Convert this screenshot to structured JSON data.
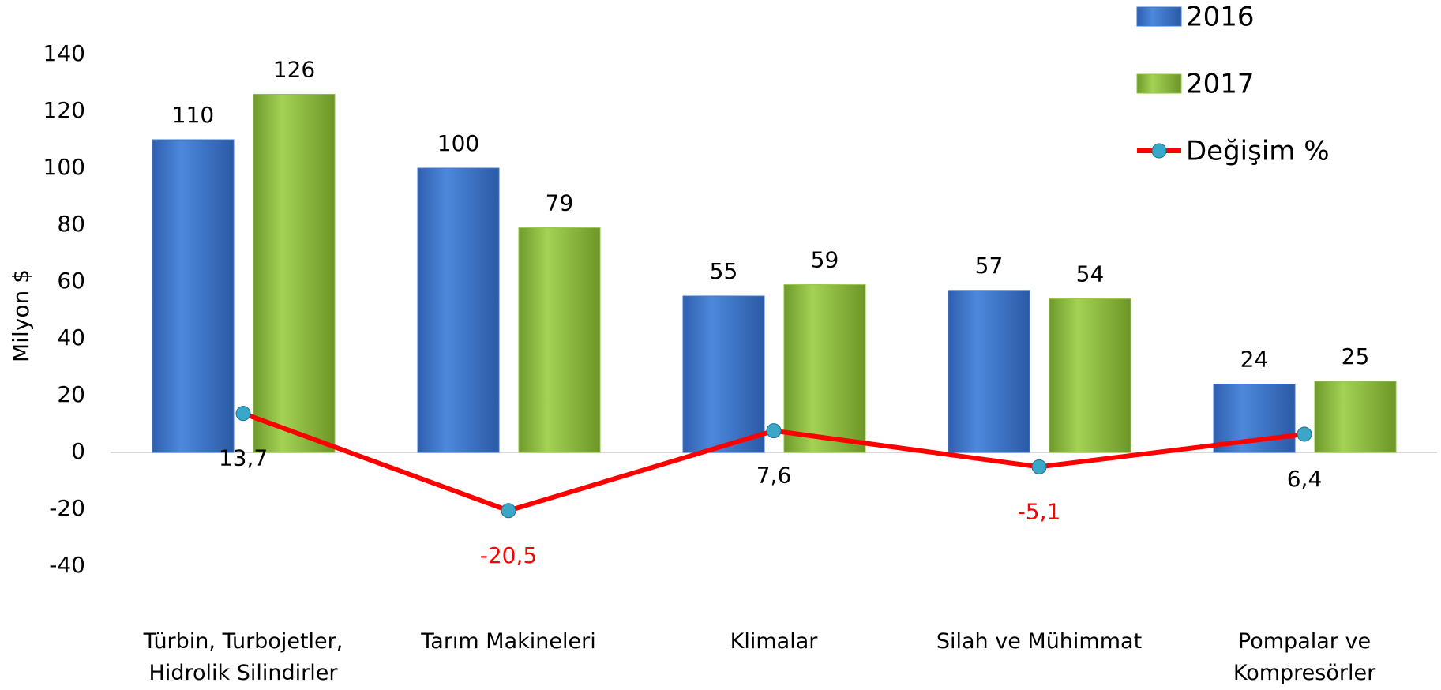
{
  "chart_data": {
    "type": "bar_line",
    "y_label": "Milyon $",
    "categories": [
      "Türbin, Turbojetler, Hidrolik Silindirler",
      "Tarım Makineleri",
      "Klimalar",
      "Silah ve Mühimmat",
      "Pompalar ve Kompresörler"
    ],
    "series": [
      {
        "name": "2016",
        "type": "bar",
        "color": "#3f78cf",
        "values": [
          110,
          100,
          55,
          57,
          24
        ]
      },
      {
        "name": "2017",
        "type": "bar",
        "color": "#92c23e",
        "values": [
          126,
          79,
          59,
          54,
          25
        ]
      },
      {
        "name": "Değişim %",
        "type": "line",
        "color": "#ff0000",
        "marker_color": "#3aa6c8",
        "values": [
          13.7,
          -20.5,
          7.6,
          -5.1,
          6.4
        ],
        "value_labels": [
          "13,7",
          "-20,5",
          "7,6",
          "-5,1",
          "6,4"
        ],
        "value_label_colors": [
          "#000000",
          "#ff0000",
          "#000000",
          "#ff0000",
          "#000000"
        ]
      }
    ],
    "ylim": [
      -40,
      140
    ],
    "yticks": [
      -40,
      -20,
      0,
      20,
      40,
      60,
      80,
      100,
      120,
      140
    ],
    "grid": false,
    "legend": "top-right"
  }
}
